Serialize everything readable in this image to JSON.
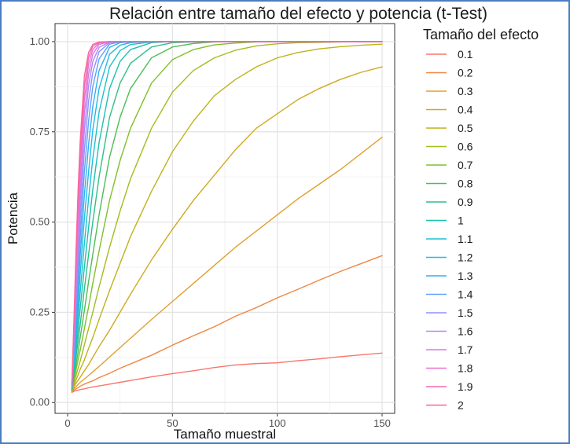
{
  "chart_data": {
    "type": "line",
    "title": "Relación entre tamaño del efecto y potencia (t-Test)",
    "xlabel": "Tamaño muestral",
    "ylabel": "Potencia",
    "xlim": [
      -6,
      156
    ],
    "ylim": [
      -0.03,
      1.05
    ],
    "x_ticks": [
      0,
      50,
      100,
      150
    ],
    "x_tick_labels": [
      "0",
      "50",
      "100",
      "150"
    ],
    "y_ticks": [
      0,
      0.25,
      0.5,
      0.75,
      1.0
    ],
    "y_tick_labels": [
      "0.00",
      "0.25",
      "0.50",
      "0.75",
      "1.00"
    ],
    "grid": true,
    "legend_title": "Tamaño del efecto",
    "legend_position": "right",
    "x": [
      2,
      3,
      4,
      5,
      6,
      8,
      10,
      12,
      15,
      20,
      25,
      30,
      40,
      50,
      60,
      70,
      80,
      90,
      100,
      110,
      120,
      130,
      140,
      150
    ],
    "series": [
      {
        "name": "0.1",
        "color": "#F8766D",
        "values": [
          0.028,
          0.031,
          0.033,
          0.034,
          0.036,
          0.038,
          0.041,
          0.043,
          0.046,
          0.051,
          0.056,
          0.061,
          0.071,
          0.08,
          0.088,
          0.097,
          0.104,
          0.108,
          0.11,
          0.116,
          0.121,
          0.127,
          0.132,
          0.137
        ]
      },
      {
        "name": "0.2",
        "color": "#EE8844",
        "values": [
          0.029,
          0.034,
          0.038,
          0.041,
          0.045,
          0.051,
          0.056,
          0.06,
          0.069,
          0.081,
          0.095,
          0.107,
          0.131,
          0.159,
          0.185,
          0.21,
          0.239,
          0.263,
          0.29,
          0.314,
          0.339,
          0.363,
          0.385,
          0.407
        ]
      },
      {
        "name": "0.3",
        "color": "#E0A030",
        "values": [
          0.03,
          0.038,
          0.044,
          0.05,
          0.056,
          0.065,
          0.075,
          0.085,
          0.1,
          0.126,
          0.152,
          0.178,
          0.23,
          0.28,
          0.33,
          0.38,
          0.43,
          0.475,
          0.52,
          0.565,
          0.605,
          0.645,
          0.69,
          0.735
        ]
      },
      {
        "name": "0.4",
        "color": "#CDAA20",
        "values": [
          0.031,
          0.043,
          0.053,
          0.062,
          0.07,
          0.088,
          0.105,
          0.125,
          0.155,
          0.2,
          0.25,
          0.3,
          0.395,
          0.48,
          0.56,
          0.63,
          0.7,
          0.76,
          0.8,
          0.84,
          0.87,
          0.895,
          0.915,
          0.93
        ]
      },
      {
        "name": "0.5",
        "color": "#BDB41C",
        "values": [
          0.032,
          0.048,
          0.062,
          0.077,
          0.092,
          0.118,
          0.15,
          0.18,
          0.23,
          0.31,
          0.385,
          0.46,
          0.585,
          0.695,
          0.78,
          0.85,
          0.895,
          0.93,
          0.955,
          0.97,
          0.98,
          0.986,
          0.99,
          0.993
        ]
      },
      {
        "name": "0.6",
        "color": "#A4BC1E",
        "values": [
          0.033,
          0.055,
          0.075,
          0.095,
          0.115,
          0.16,
          0.205,
          0.25,
          0.32,
          0.43,
          0.53,
          0.62,
          0.76,
          0.86,
          0.92,
          0.955,
          0.976,
          0.988,
          0.994,
          0.997,
          0.998,
          0.999,
          1.0,
          1.0
        ]
      },
      {
        "name": "0.7",
        "color": "#80C028",
        "values": [
          0.034,
          0.062,
          0.09,
          0.118,
          0.145,
          0.205,
          0.265,
          0.33,
          0.42,
          0.56,
          0.67,
          0.76,
          0.885,
          0.95,
          0.978,
          0.991,
          0.996,
          0.999,
          1.0,
          1.0,
          1.0,
          1.0,
          1.0,
          1.0
        ]
      },
      {
        "name": "0.8",
        "color": "#4DBE55",
        "values": [
          0.035,
          0.07,
          0.105,
          0.14,
          0.18,
          0.255,
          0.335,
          0.41,
          0.52,
          0.68,
          0.79,
          0.87,
          0.955,
          0.985,
          0.995,
          0.999,
          1.0,
          1.0,
          1.0,
          1.0,
          1.0,
          1.0,
          1.0,
          1.0
        ]
      },
      {
        "name": "0.9",
        "color": "#2EBF86",
        "values": [
          0.036,
          0.08,
          0.125,
          0.17,
          0.215,
          0.315,
          0.41,
          0.5,
          0.625,
          0.79,
          0.885,
          0.94,
          0.985,
          0.997,
          0.999,
          1.0,
          1.0,
          1.0,
          1.0,
          1.0,
          1.0,
          1.0,
          1.0,
          1.0
        ]
      },
      {
        "name": "1",
        "color": "#1CC0AE",
        "values": [
          0.037,
          0.09,
          0.145,
          0.2,
          0.26,
          0.375,
          0.485,
          0.59,
          0.72,
          0.87,
          0.945,
          0.978,
          0.997,
          1.0,
          1.0,
          1.0,
          1.0,
          1.0,
          1.0,
          1.0,
          1.0,
          1.0,
          1.0,
          1.0
        ]
      },
      {
        "name": "1.1",
        "color": "#1FC0CF",
        "values": [
          0.038,
          0.1,
          0.165,
          0.235,
          0.305,
          0.44,
          0.565,
          0.675,
          0.805,
          0.93,
          0.975,
          0.992,
          0.999,
          1.0,
          1.0,
          1.0,
          1.0,
          1.0,
          1.0,
          1.0,
          1.0,
          1.0,
          1.0,
          1.0
        ]
      },
      {
        "name": "1.2",
        "color": "#22BAE4",
        "values": [
          0.039,
          0.11,
          0.19,
          0.27,
          0.355,
          0.51,
          0.64,
          0.755,
          0.87,
          0.965,
          0.99,
          0.997,
          1.0,
          1.0,
          1.0,
          1.0,
          1.0,
          1.0,
          1.0,
          1.0,
          1.0,
          1.0,
          1.0,
          1.0
        ]
      },
      {
        "name": "1.3",
        "color": "#35AFF2",
        "values": [
          0.04,
          0.122,
          0.215,
          0.31,
          0.405,
          0.575,
          0.715,
          0.82,
          0.92,
          0.984,
          0.997,
          0.999,
          1.0,
          1.0,
          1.0,
          1.0,
          1.0,
          1.0,
          1.0,
          1.0,
          1.0,
          1.0,
          1.0,
          1.0
        ]
      },
      {
        "name": "1.4",
        "color": "#619FF8",
        "values": [
          0.041,
          0.135,
          0.24,
          0.35,
          0.455,
          0.64,
          0.78,
          0.875,
          0.952,
          0.993,
          0.999,
          1.0,
          1.0,
          1.0,
          1.0,
          1.0,
          1.0,
          1.0,
          1.0,
          1.0,
          1.0,
          1.0,
          1.0,
          1.0
        ]
      },
      {
        "name": "1.5",
        "color": "#8D93F8",
        "values": [
          0.042,
          0.148,
          0.27,
          0.39,
          0.505,
          0.7,
          0.835,
          0.915,
          0.972,
          0.997,
          1.0,
          1.0,
          1.0,
          1.0,
          1.0,
          1.0,
          1.0,
          1.0,
          1.0,
          1.0,
          1.0,
          1.0,
          1.0,
          1.0
        ]
      },
      {
        "name": "1.6",
        "color": "#B187F5",
        "values": [
          0.043,
          0.162,
          0.3,
          0.43,
          0.555,
          0.755,
          0.878,
          0.945,
          0.984,
          0.999,
          1.0,
          1.0,
          1.0,
          1.0,
          1.0,
          1.0,
          1.0,
          1.0,
          1.0,
          1.0,
          1.0,
          1.0,
          1.0,
          1.0
        ]
      },
      {
        "name": "1.7",
        "color": "#D27BE9",
        "values": [
          0.044,
          0.177,
          0.33,
          0.47,
          0.6,
          0.8,
          0.91,
          0.965,
          0.992,
          1.0,
          1.0,
          1.0,
          1.0,
          1.0,
          1.0,
          1.0,
          1.0,
          1.0,
          1.0,
          1.0,
          1.0,
          1.0,
          1.0,
          1.0
        ]
      },
      {
        "name": "1.8",
        "color": "#EA70D0",
        "values": [
          0.045,
          0.192,
          0.36,
          0.51,
          0.645,
          0.84,
          0.937,
          0.978,
          0.996,
          1.0,
          1.0,
          1.0,
          1.0,
          1.0,
          1.0,
          1.0,
          1.0,
          1.0,
          1.0,
          1.0,
          1.0,
          1.0,
          1.0,
          1.0
        ]
      },
      {
        "name": "1.9",
        "color": "#F669B4",
        "values": [
          0.046,
          0.207,
          0.39,
          0.55,
          0.685,
          0.875,
          0.956,
          0.987,
          0.998,
          1.0,
          1.0,
          1.0,
          1.0,
          1.0,
          1.0,
          1.0,
          1.0,
          1.0,
          1.0,
          1.0,
          1.0,
          1.0,
          1.0,
          1.0
        ]
      },
      {
        "name": "2",
        "color": "#F8689A",
        "values": [
          0.047,
          0.223,
          0.42,
          0.59,
          0.725,
          0.905,
          0.97,
          0.992,
          0.999,
          1.0,
          1.0,
          1.0,
          1.0,
          1.0,
          1.0,
          1.0,
          1.0,
          1.0,
          1.0,
          1.0,
          1.0,
          1.0,
          1.0,
          1.0
        ]
      }
    ]
  }
}
